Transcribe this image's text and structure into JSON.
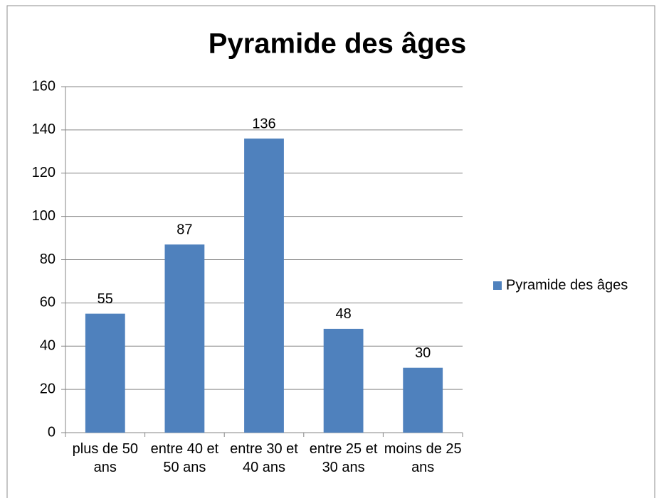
{
  "chart_data": {
    "type": "bar",
    "title": "Pyramide des âges",
    "categories": [
      "plus de 50 ans",
      "entre 40 et 50 ans",
      "entre 30 et 40 ans",
      "entre 25 et 30 ans",
      "moins de 25 ans"
    ],
    "series": [
      {
        "name": "Pyramide des âges",
        "color": "#4f81bd",
        "values": [
          55,
          87,
          136,
          48,
          30
        ]
      }
    ],
    "ylim": [
      0,
      160
    ],
    "yticks": [
      0,
      20,
      40,
      60,
      80,
      100,
      120,
      140,
      160
    ],
    "grid": true,
    "legend": "right"
  }
}
